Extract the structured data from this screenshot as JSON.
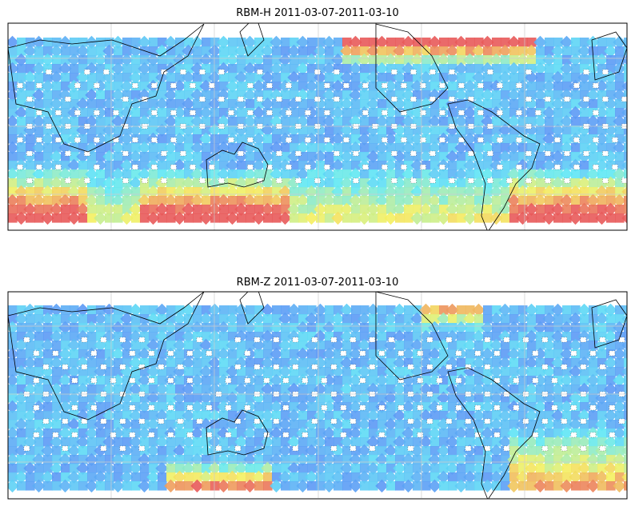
{
  "maps": [
    {
      "title": "RBM-H 2011-03-07-2011-03-10"
    },
    {
      "title": "RBM-Z 2011-03-07-2011-03-10"
    }
  ]
}
